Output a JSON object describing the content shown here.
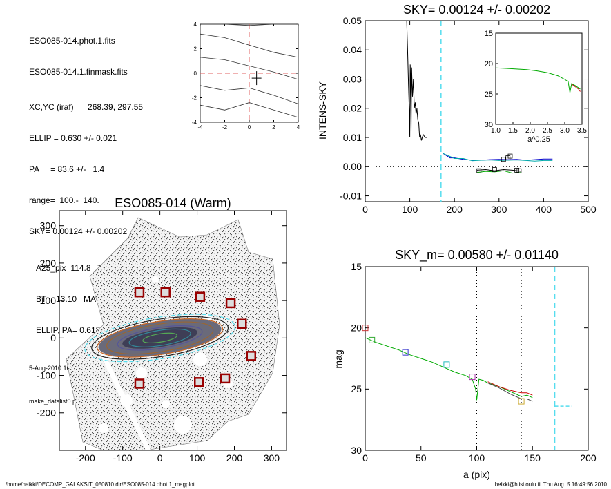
{
  "info": {
    "line1": "ESO085-014.phot.1.fits",
    "line2": "ESO085-014.1.finmask.fits",
    "line3": "XC,YC (iraf)=    268.39, 297.55",
    "line4": "ELLIP = 0.630 +/- 0.021",
    "line5": "PA     = 83.6 +/-   1.4",
    "line6": "range=  100.-  140.",
    "line7": "SKY= 0.00124 +/- 0.00202",
    "line8": "A25_pix=114.8   T= 9.0  B",
    "line9": "BT=  13.10   MABS=-18.80",
    "line10": "ELLIP, PA= 0.618   75.3",
    "date": "5-Aug-2010 16:49:56.00",
    "program": "make_datalist0.pro (version HS230610)"
  },
  "footer": {
    "left": "/home/heikki/DECOMP_GALAKSIT_050810.dir/ESO085-014.phot.1_magplot",
    "right": "heikki@hiisi.oulu.fi  Thu Aug  5 16:49:56 2010"
  },
  "chart_data": [
    {
      "type": "line",
      "panel": "center-plot",
      "title": "",
      "xlim": [
        -4,
        4
      ],
      "ylim": [
        -4,
        4
      ],
      "xticks": [
        "-4",
        "-2",
        "0",
        "2",
        "4"
      ],
      "yticks": [
        "-4",
        "-2",
        "0",
        "2",
        "4"
      ],
      "series": [
        {
          "x": [
            -4,
            -2,
            0,
            2,
            4
          ],
          "y": [
            4.0,
            4.0,
            3.9,
            4.0,
            4.0
          ]
        },
        {
          "x": [
            -4,
            -2,
            0,
            2,
            4
          ],
          "y": [
            3.2,
            2.9,
            2.3,
            1.7,
            1.3
          ]
        },
        {
          "x": [
            -4,
            -2,
            0,
            2,
            4
          ],
          "y": [
            1.3,
            1.1,
            0.6,
            0.1,
            -0.5
          ]
        },
        {
          "x": [
            -4,
            -2,
            0,
            2,
            4
          ],
          "y": [
            -1.0,
            -1.4,
            -1.2,
            -1.8,
            -2.5
          ]
        },
        {
          "x": [
            -4,
            -2,
            0,
            2,
            4
          ],
          "y": [
            -2.6,
            -3.0,
            -2.4,
            -3.0,
            -3.6
          ]
        }
      ],
      "crosshair": {
        "x": 0,
        "y": 0
      },
      "marker": {
        "x": 0.6,
        "y": -0.4
      }
    },
    {
      "type": "line",
      "panel": "sky-profile",
      "title": "SKY= 0.00124 +/- 0.00202",
      "xlabel": "",
      "ylabel": "INTENS-SKY",
      "xlim": [
        0,
        500
      ],
      "ylim": [
        -0.012,
        0.05
      ],
      "xticks": [
        "0",
        "100",
        "200",
        "300",
        "400",
        "500"
      ],
      "yticks": [
        "-0.01",
        "0.00",
        "0.01",
        "0.02",
        "0.03",
        "0.04",
        "0.05"
      ],
      "vline": 170,
      "series": [
        {
          "name": "",
          "color": "#000000",
          "x": [
            93,
            95,
            97,
            99,
            100,
            101,
            102,
            103,
            104,
            106,
            108,
            110,
            112,
            114,
            116,
            118,
            120,
            122,
            124,
            126,
            128,
            130,
            134,
            138
          ],
          "y": [
            0.05,
            0.04,
            0.028,
            0.018,
            0.01,
            0.035,
            0.028,
            0.012,
            0.034,
            0.024,
            0.03,
            0.02,
            0.022,
            0.018,
            0.02,
            0.016,
            0.015,
            0.01,
            0.011,
            0.009,
            0.01,
            0.011,
            0.01,
            0.01
          ]
        },
        {
          "name": "",
          "color": "#0000cc",
          "x": [
            175,
            190,
            200,
            220,
            240,
            260,
            280,
            300,
            320,
            340,
            360,
            380,
            400,
            420
          ],
          "y": [
            0.0045,
            0.003,
            0.003,
            0.0025,
            0.0022,
            0.0022,
            0.0024,
            0.0025,
            0.0024,
            0.0025,
            0.0022,
            0.0024,
            0.0026,
            0.0026
          ]
        },
        {
          "name": "",
          "color": "#00aaaa",
          "x": [
            175,
            190,
            200,
            220,
            240,
            260,
            280,
            300,
            320,
            340,
            360,
            380,
            400,
            420
          ],
          "y": [
            0.0045,
            0.0035,
            0.0028,
            0.0028,
            0.002,
            0.0022,
            0.0023,
            0.0021,
            0.0022,
            0.0023,
            0.0021,
            0.0019,
            0.0021,
            0.0021
          ]
        },
        {
          "name": "",
          "color": "#00aa00",
          "x": [
            250,
            270,
            290,
            310,
            330,
            350
          ],
          "y": [
            -0.002,
            -0.0016,
            -0.0018,
            -0.0014,
            -0.0022,
            -0.002
          ]
        },
        {
          "name": "",
          "color": "#000000",
          "x": [
            250,
            270,
            290,
            310,
            330,
            350
          ],
          "y": [
            -0.0012,
            -0.001,
            -0.0014,
            -0.001,
            -0.0012,
            -0.0016
          ]
        }
      ],
      "boxes": [
        {
          "x": 255,
          "y": -0.0014
        },
        {
          "x": 290,
          "y": -0.001
        },
        {
          "x": 310,
          "y": 0.0025
        },
        {
          "x": 320,
          "y": 0.003
        },
        {
          "x": 325,
          "y": 0.0036
        },
        {
          "x": 340,
          "y": -0.0012
        },
        {
          "x": 345,
          "y": -0.0014
        }
      ],
      "inset": {
        "xlabel": "a^0.25",
        "xlim": [
          1.0,
          3.5
        ],
        "ylim": [
          30,
          15
        ],
        "xticks": [
          "1.0",
          "1.5",
          "2.0",
          "2.5",
          "3.0",
          "3.5"
        ],
        "yticks": [
          "15",
          "20",
          "25",
          "30"
        ],
        "series": [
          {
            "color": "#00aa00",
            "x": [
              1.0,
              1.3,
              1.6,
              1.9,
              2.2,
              2.5,
              2.8,
              3.0,
              3.1,
              3.15,
              3.2,
              3.3,
              3.4,
              3.45
            ],
            "y": [
              20.7,
              20.8,
              20.9,
              21.0,
              21.2,
              21.5,
              22.0,
              22.6,
              23.0,
              24.8,
              23.3,
              23.6,
              24.0,
              24.2
            ]
          },
          {
            "color": "#cc0000",
            "x": [
              3.2,
              3.3,
              3.4,
              3.45
            ],
            "y": [
              23.4,
              23.8,
              24.2,
              24.6
            ]
          }
        ]
      }
    },
    {
      "type": "image",
      "panel": "galaxy-image",
      "title": "ESO085-014 (Warm)",
      "xlim": [
        -270,
        340
      ],
      "ylim": [
        -300,
        340
      ],
      "xticks": [
        "-200",
        "-100",
        "0",
        "100",
        "200",
        "300"
      ],
      "yticks": [
        "-200",
        "-100",
        "0",
        "100",
        "200",
        "300"
      ],
      "boxes": [
        {
          "x": -55,
          "y": 122
        },
        {
          "x": 15,
          "y": 122
        },
        {
          "x": 108,
          "y": 110
        },
        {
          "x": 190,
          "y": 93
        },
        {
          "x": 220,
          "y": 38
        },
        {
          "x": 245,
          "y": -48
        },
        {
          "x": 175,
          "y": -108
        },
        {
          "x": 105,
          "y": -118
        },
        {
          "x": -55,
          "y": -122
        }
      ]
    },
    {
      "type": "line",
      "panel": "mag-profile",
      "title": "SKY_m=  0.00580 +/- 0.01140",
      "xlabel": "a (pix)",
      "ylabel": "mag",
      "xlim": [
        0,
        200
      ],
      "ylim": [
        30,
        15
      ],
      "xticks": [
        "0",
        "50",
        "100",
        "150",
        "200"
      ],
      "yticks": [
        "15",
        "20",
        "25",
        "30"
      ],
      "vlines_dotted": [
        100,
        140
      ],
      "vline_dashed": 170,
      "series": [
        {
          "name": "",
          "color": "#00aa00",
          "x": [
            0,
            10,
            20,
            30,
            40,
            50,
            60,
            70,
            80,
            90,
            96,
            99,
            100,
            102,
            106,
            110,
            120,
            130,
            140,
            145,
            150
          ],
          "y": [
            20.8,
            21.2,
            21.5,
            21.8,
            22.2,
            22.5,
            22.8,
            23.2,
            23.6,
            23.9,
            24.2,
            25.0,
            25.9,
            24.2,
            24.3,
            24.5,
            24.8,
            25.2,
            25.6,
            25.5,
            25.7
          ]
        },
        {
          "name": "",
          "color": "#cc0000",
          "x": [
            110,
            120,
            130,
            140,
            145,
            150
          ],
          "y": [
            24.4,
            24.8,
            25.1,
            25.3,
            25.3,
            25.5
          ]
        },
        {
          "name": "",
          "color": "#444444",
          "x": [
            110,
            120,
            130,
            140,
            145,
            150
          ],
          "y": [
            24.5,
            24.9,
            25.4,
            25.8,
            25.8,
            26.0
          ]
        }
      ],
      "boxes": [
        {
          "x": 0,
          "y": 20.0,
          "color": "#cc3333"
        },
        {
          "x": 6,
          "y": 21.0,
          "color": "#33aa33"
        },
        {
          "x": 36,
          "y": 22.0,
          "color": "#3333cc"
        },
        {
          "x": 73,
          "y": 23.0,
          "color": "#22bbbb"
        },
        {
          "x": 96,
          "y": 24.0,
          "color": "#aa33aa"
        },
        {
          "x": 140,
          "y": 26.0,
          "color": "#ccaa33"
        }
      ],
      "sky_marker": {
        "x": [
          170,
          185
        ],
        "y": 26.4
      }
    }
  ]
}
